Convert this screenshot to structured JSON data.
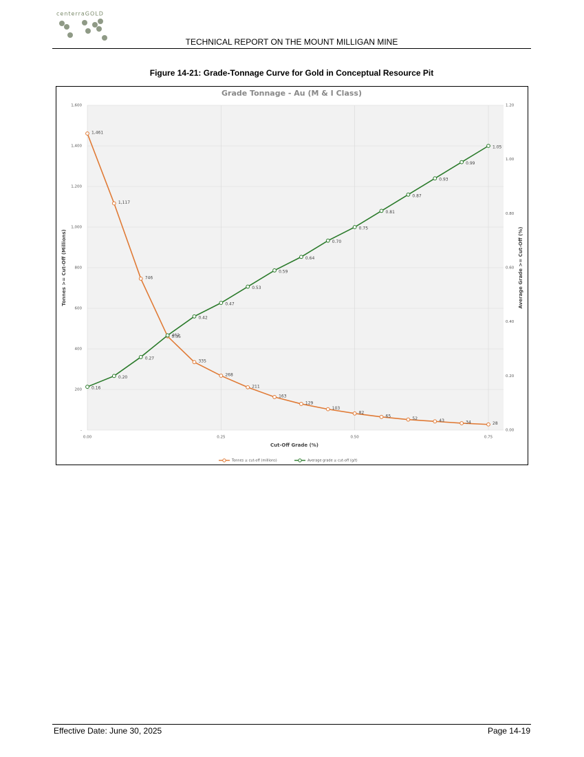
{
  "header": {
    "logo": "centerraGOLD",
    "title": "TECHNICAL REPORT ON THE MOUNT MILLIGAN MINE"
  },
  "figure": {
    "caption": "Figure 14-21: Grade-Tonnage Curve for Gold in Conceptual Resource Pit"
  },
  "chart_data": {
    "type": "line",
    "title": "Grade Tonnage - Au (M & I Class)",
    "x_label": "Cut-Off Grade (%)",
    "y_label": "Tonnes >= Cut-Off (Millions)",
    "y2_label": "Average Grade >= Cut-Off (%)",
    "x": [
      0,
      0.05,
      0.1,
      0.15,
      0.2,
      0.25,
      0.3,
      0.35,
      0.4,
      0.45,
      0.5,
      0.55,
      0.6,
      0.65,
      0.7,
      0.75
    ],
    "xlim": [
      0,
      0.75
    ],
    "xticks": [
      {
        "value": 0,
        "label": "0.00"
      },
      {
        "value": 0.25,
        "label": "0.25"
      },
      {
        "value": 0.5,
        "label": "0.50"
      },
      {
        "value": 0.75,
        "label": "0.75"
      }
    ],
    "ylim": [
      0,
      1600
    ],
    "yticks": [
      {
        "value": 0,
        "label": "-"
      },
      200,
      400,
      600,
      800,
      {
        "value": 1000,
        "label": "1,000"
      },
      {
        "value": 1200,
        "label": "1,200"
      },
      {
        "value": 1400,
        "label": "1,400"
      },
      {
        "value": 1600,
        "label": "1,600"
      }
    ],
    "y2lim": [
      0,
      1.2
    ],
    "y2ticks": [
      {
        "value": 0,
        "label": "0.00"
      },
      {
        "value": 0.2,
        "label": "0.20"
      },
      {
        "value": 0.4,
        "label": "0.40"
      },
      {
        "value": 0.6,
        "label": "0.60"
      },
      {
        "value": 0.8,
        "label": "0.80"
      },
      {
        "value": 1,
        "label": "1.00"
      },
      {
        "value": 1.2,
        "label": "1.20"
      }
    ],
    "grid": true,
    "series": [
      {
        "name": "Tonnes ≥ cut-off (millions)",
        "color": "#e07a35",
        "values": [
          1461,
          1117,
          746,
          462,
          335,
          268,
          211,
          163,
          129,
          103,
          82,
          65,
          52,
          43,
          34,
          28
        ],
        "value_labels": [
          "1,461",
          "1,117",
          "746",
          "462",
          "335",
          "268",
          "211",
          "163",
          "129",
          "103",
          "82",
          "65",
          "52",
          "43",
          "34",
          "28"
        ]
      },
      {
        "name": "Average grade ≥ cut-off (g/t)",
        "color": "#2a7a2a",
        "axis": "y2",
        "values": [
          0.16,
          0.2,
          0.27,
          0.35,
          0.42,
          0.47,
          0.53,
          0.59,
          0.64,
          0.7,
          0.75,
          0.81,
          0.87,
          0.93,
          0.99,
          1.05
        ],
        "value_labels": [
          "0.16",
          "0.20",
          "0.27",
          "0.35",
          "0.42",
          "0.47",
          "0.53",
          "0.59",
          "0.64",
          "0.70",
          "0.75",
          "0.81",
          "0.87",
          "0.93",
          "0.99",
          "1.05"
        ]
      }
    ]
  },
  "footer": {
    "date": "Effective Date: June 30, 2025",
    "page": "Page 14-19"
  }
}
